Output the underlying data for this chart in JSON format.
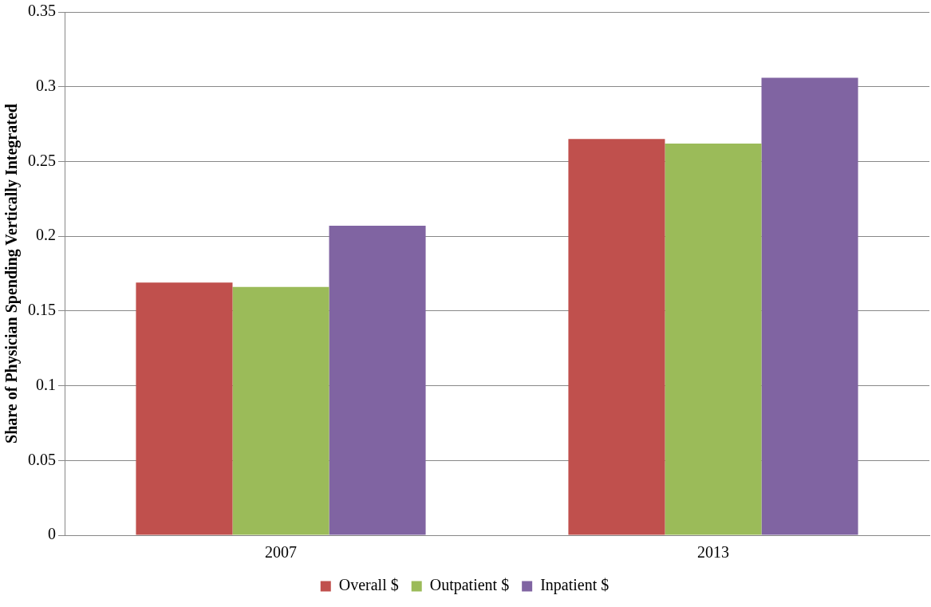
{
  "chart_data": {
    "type": "bar",
    "ylabel": "Share of Physician Spending Vertically Integrated",
    "categories": [
      "2007",
      "2013"
    ],
    "series": [
      {
        "name": "Overall $",
        "color": "#c0504d",
        "values": [
          0.169,
          0.265
        ]
      },
      {
        "name": "Outpatient $",
        "color": "#9bbb59",
        "values": [
          0.166,
          0.262
        ]
      },
      {
        "name": "Inpatient $",
        "color": "#8064a2",
        "values": [
          0.207,
          0.306
        ]
      }
    ],
    "ylim": [
      0,
      0.35
    ],
    "yticks": [
      0,
      0.05,
      0.1,
      0.15,
      0.2,
      0.25,
      0.3,
      0.35
    ],
    "grid": "y",
    "legend": "bottom"
  }
}
